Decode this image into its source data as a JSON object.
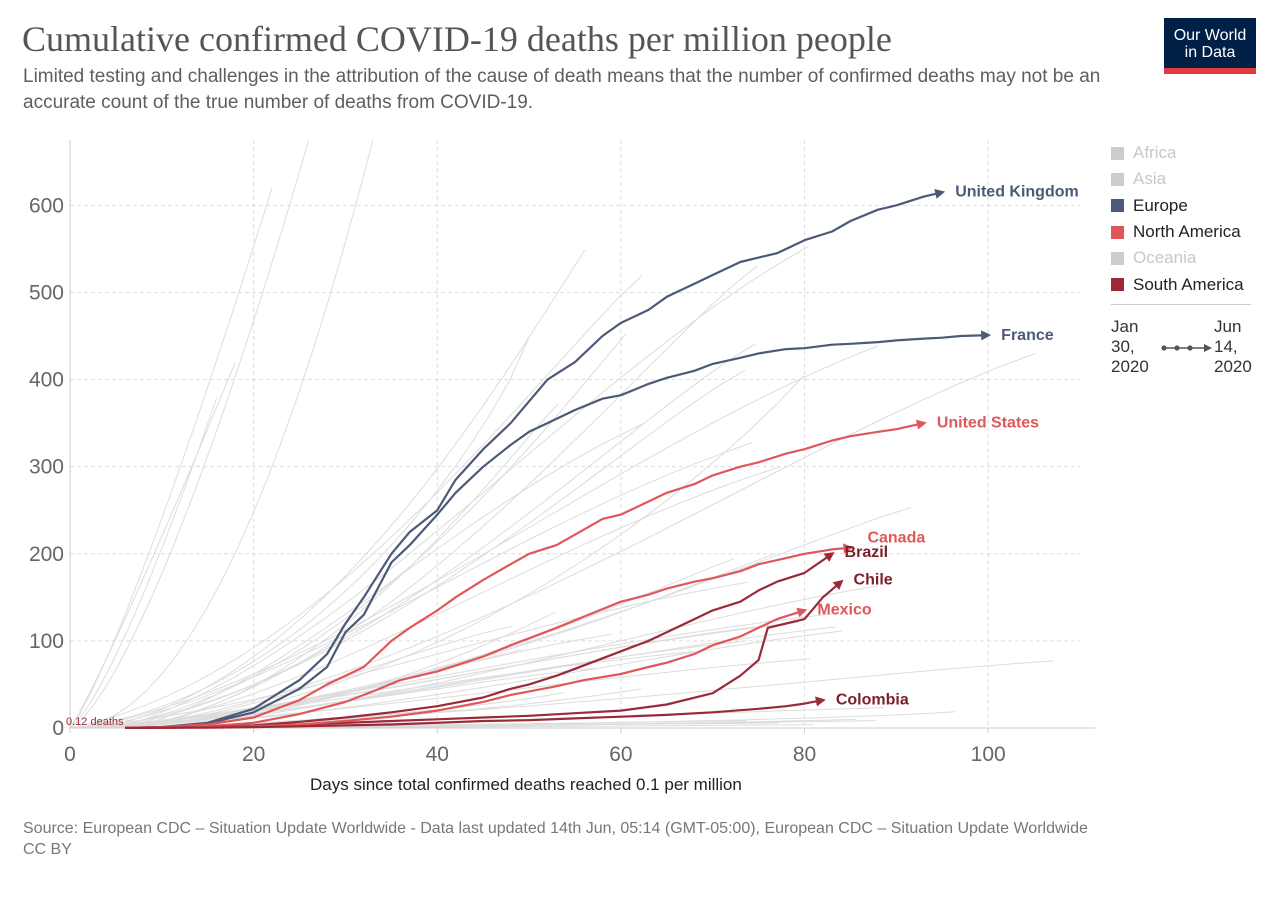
{
  "header": {
    "title": "Cumulative confirmed COVID-19 deaths per million people",
    "subtitle": "Limited testing and challenges in the attribution of the cause of death means that the number of confirmed deaths may not be an accurate count of the true number of deaths from COVID-19."
  },
  "logo": {
    "line1": "Our World",
    "line2": "in Data",
    "bg": "#002147",
    "stripe": "#e0393e"
  },
  "legend": {
    "items": [
      {
        "label": "Africa",
        "color": "#cccccc",
        "muted": true
      },
      {
        "label": "Asia",
        "color": "#cccccc",
        "muted": true
      },
      {
        "label": "Europe",
        "color": "#4c5a78",
        "muted": false
      },
      {
        "label": "North America",
        "color": "#e15759",
        "muted": false
      },
      {
        "label": "Oceania",
        "color": "#cccccc",
        "muted": true
      },
      {
        "label": "South America",
        "color": "#9a2a3a",
        "muted": false
      }
    ],
    "time_start": "Jan 30, 2020",
    "time_end": "Jun 14, 2020"
  },
  "footer": {
    "source": "Source: European CDC – Situation Update Worldwide - Data last updated 14th Jun, 05:14 (GMT-05:00), European CDC – Situation Update Worldwide",
    "license": "CC BY"
  },
  "chart_data": {
    "type": "line",
    "title": "Cumulative confirmed COVID-19 deaths per million people",
    "xlabel": "Days since total confirmed deaths reached 0.1 per million",
    "ylabel": "",
    "xlim": [
      0,
      110
    ],
    "ylim": [
      0,
      675
    ],
    "x_ticks": [
      0,
      20,
      40,
      60,
      80,
      100
    ],
    "y_ticks": [
      0,
      100,
      200,
      300,
      400,
      500,
      600
    ],
    "grid": true,
    "legend_position": "right",
    "start_annotation": "0.12 deaths",
    "series": [
      {
        "name": "United Kingdom",
        "color": "#4c5a78",
        "label_color": "#4c5a78",
        "points": [
          [
            6,
            0.1
          ],
          [
            10,
            1
          ],
          [
            15,
            6
          ],
          [
            20,
            22
          ],
          [
            25,
            55
          ],
          [
            28,
            85
          ],
          [
            30,
            120
          ],
          [
            32,
            150
          ],
          [
            35,
            200
          ],
          [
            37,
            225
          ],
          [
            40,
            250
          ],
          [
            42,
            285
          ],
          [
            45,
            320
          ],
          [
            48,
            350
          ],
          [
            50,
            375
          ],
          [
            52,
            400
          ],
          [
            55,
            420
          ],
          [
            58,
            450
          ],
          [
            60,
            465
          ],
          [
            63,
            480
          ],
          [
            65,
            495
          ],
          [
            68,
            510
          ],
          [
            70,
            520
          ],
          [
            73,
            535
          ],
          [
            75,
            540
          ],
          [
            77,
            545
          ],
          [
            80,
            560
          ],
          [
            83,
            570
          ],
          [
            85,
            582
          ],
          [
            88,
            595
          ],
          [
            90,
            600
          ],
          [
            93,
            610
          ],
          [
            95,
            615
          ]
        ]
      },
      {
        "name": "France",
        "color": "#4c5a78",
        "label_color": "#4c5a78",
        "points": [
          [
            6,
            0.1
          ],
          [
            10,
            1
          ],
          [
            15,
            5
          ],
          [
            20,
            18
          ],
          [
            25,
            45
          ],
          [
            28,
            70
          ],
          [
            30,
            110
          ],
          [
            32,
            130
          ],
          [
            35,
            190
          ],
          [
            37,
            210
          ],
          [
            40,
            245
          ],
          [
            42,
            270
          ],
          [
            45,
            300
          ],
          [
            48,
            325
          ],
          [
            50,
            340
          ],
          [
            52,
            350
          ],
          [
            55,
            365
          ],
          [
            58,
            378
          ],
          [
            60,
            382
          ],
          [
            63,
            395
          ],
          [
            65,
            402
          ],
          [
            68,
            410
          ],
          [
            70,
            418
          ],
          [
            73,
            425
          ],
          [
            75,
            430
          ],
          [
            78,
            435
          ],
          [
            80,
            436
          ],
          [
            83,
            440
          ],
          [
            85,
            441
          ],
          [
            88,
            443
          ],
          [
            90,
            445
          ],
          [
            93,
            447
          ],
          [
            95,
            448
          ],
          [
            97,
            450
          ],
          [
            100,
            451
          ]
        ]
      },
      {
        "name": "United States",
        "color": "#e15759",
        "label_color": "#e15759",
        "points": [
          [
            6,
            0.1
          ],
          [
            10,
            1
          ],
          [
            15,
            4
          ],
          [
            20,
            12
          ],
          [
            25,
            32
          ],
          [
            28,
            50
          ],
          [
            30,
            60
          ],
          [
            32,
            70
          ],
          [
            35,
            100
          ],
          [
            37,
            115
          ],
          [
            40,
            135
          ],
          [
            42,
            150
          ],
          [
            45,
            170
          ],
          [
            48,
            188
          ],
          [
            50,
            200
          ],
          [
            53,
            210
          ],
          [
            56,
            228
          ],
          [
            58,
            240
          ],
          [
            60,
            245
          ],
          [
            63,
            260
          ],
          [
            65,
            270
          ],
          [
            68,
            280
          ],
          [
            70,
            290
          ],
          [
            73,
            300
          ],
          [
            75,
            305
          ],
          [
            78,
            315
          ],
          [
            80,
            320
          ],
          [
            83,
            330
          ],
          [
            85,
            335
          ],
          [
            88,
            340
          ],
          [
            90,
            343
          ],
          [
            93,
            350
          ]
        ]
      },
      {
        "name": "Canada",
        "color": "#e15759",
        "label_color": "#e15759",
        "label_offset": [
          14,
          -10
        ],
        "points": [
          [
            6,
            0.1
          ],
          [
            10,
            0.5
          ],
          [
            15,
            2
          ],
          [
            20,
            6
          ],
          [
            25,
            16
          ],
          [
            30,
            30
          ],
          [
            33,
            42
          ],
          [
            36,
            55
          ],
          [
            40,
            65
          ],
          [
            45,
            82
          ],
          [
            48,
            95
          ],
          [
            50,
            103
          ],
          [
            53,
            115
          ],
          [
            56,
            128
          ],
          [
            60,
            145
          ],
          [
            63,
            153
          ],
          [
            65,
            160
          ],
          [
            68,
            168
          ],
          [
            70,
            172
          ],
          [
            73,
            180
          ],
          [
            75,
            188
          ],
          [
            78,
            195
          ],
          [
            80,
            200
          ],
          [
            83,
            205
          ],
          [
            85,
            207
          ]
        ]
      },
      {
        "name": "Brazil",
        "color": "#9a2a3a",
        "label_color": "#7a1f2b",
        "points": [
          [
            6,
            0.1
          ],
          [
            10,
            0.3
          ],
          [
            15,
            1
          ],
          [
            20,
            3
          ],
          [
            25,
            7
          ],
          [
            30,
            12
          ],
          [
            35,
            18
          ],
          [
            40,
            25
          ],
          [
            45,
            35
          ],
          [
            48,
            45
          ],
          [
            50,
            50
          ],
          [
            53,
            60
          ],
          [
            56,
            72
          ],
          [
            60,
            88
          ],
          [
            63,
            100
          ],
          [
            65,
            110
          ],
          [
            68,
            125
          ],
          [
            70,
            135
          ],
          [
            73,
            145
          ],
          [
            75,
            158
          ],
          [
            77,
            168
          ],
          [
            80,
            178
          ],
          [
            83,
            200
          ]
        ]
      },
      {
        "name": "Chile",
        "color": "#9a2a3a",
        "label_color": "#7a1f2b",
        "points": [
          [
            6,
            0.1
          ],
          [
            15,
            1
          ],
          [
            20,
            2
          ],
          [
            25,
            4
          ],
          [
            30,
            6
          ],
          [
            35,
            8
          ],
          [
            40,
            10
          ],
          [
            45,
            12
          ],
          [
            50,
            14
          ],
          [
            55,
            17
          ],
          [
            60,
            20
          ],
          [
            65,
            27
          ],
          [
            70,
            40
          ],
          [
            73,
            60
          ],
          [
            75,
            78
          ],
          [
            76,
            115
          ],
          [
            78,
            120
          ],
          [
            80,
            125
          ],
          [
            82,
            150
          ],
          [
            84,
            168
          ]
        ]
      },
      {
        "name": "Mexico",
        "color": "#e15759",
        "label_color": "#e15759",
        "points": [
          [
            6,
            0.1
          ],
          [
            10,
            0.3
          ],
          [
            15,
            1
          ],
          [
            20,
            2
          ],
          [
            25,
            4
          ],
          [
            30,
            8
          ],
          [
            35,
            13
          ],
          [
            40,
            20
          ],
          [
            45,
            30
          ],
          [
            48,
            38
          ],
          [
            50,
            42
          ],
          [
            53,
            48
          ],
          [
            56,
            55
          ],
          [
            60,
            62
          ],
          [
            63,
            70
          ],
          [
            65,
            75
          ],
          [
            68,
            85
          ],
          [
            70,
            95
          ],
          [
            73,
            105
          ],
          [
            75,
            115
          ],
          [
            77,
            125
          ],
          [
            80,
            135
          ]
        ]
      },
      {
        "name": "Colombia",
        "color": "#9a2a3a",
        "label_color": "#7a1f2b",
        "points": [
          [
            6,
            0.1
          ],
          [
            10,
            0.2
          ],
          [
            15,
            0.5
          ],
          [
            20,
            1
          ],
          [
            25,
            2
          ],
          [
            30,
            3
          ],
          [
            35,
            4
          ],
          [
            40,
            6
          ],
          [
            45,
            8
          ],
          [
            50,
            9
          ],
          [
            55,
            11
          ],
          [
            60,
            13
          ],
          [
            65,
            15
          ],
          [
            70,
            18
          ],
          [
            75,
            22
          ],
          [
            78,
            25
          ],
          [
            80,
            28
          ],
          [
            82,
            32
          ]
        ]
      }
    ]
  }
}
